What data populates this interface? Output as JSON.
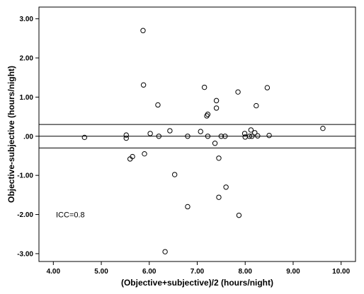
{
  "chart_data": {
    "type": "scatter",
    "title": "",
    "xlabel": "(Objective+subjective)/2 (hours/night)",
    "ylabel": "Objective-subjective (hours/night)",
    "xlim": [
      3.7,
      10.3
    ],
    "ylim": [
      -3.2,
      3.3
    ],
    "xticks": [
      4,
      5,
      6,
      7,
      8,
      9,
      10
    ],
    "xtick_labels": [
      "4.00",
      "5.00",
      "6.00",
      "7.00",
      "8.00",
      "9.00",
      "10.00"
    ],
    "yticks": [
      3,
      2,
      1,
      0,
      -1,
      -2,
      -3
    ],
    "ytick_labels": [
      "3.00",
      "2.00",
      "1.00",
      ".00",
      "-1.00",
      "-2.00",
      "-3.00"
    ],
    "reference_lines": [
      0.3,
      0,
      -0.3
    ],
    "grid": false,
    "annotation": "ICC=0.8",
    "points": [
      {
        "x": 4.65,
        "y": -0.03
      },
      {
        "x": 5.52,
        "y": 0.03
      },
      {
        "x": 5.52,
        "y": -0.05
      },
      {
        "x": 5.6,
        "y": -0.58
      },
      {
        "x": 5.65,
        "y": -0.52
      },
      {
        "x": 5.87,
        "y": 2.7
      },
      {
        "x": 5.88,
        "y": 1.31
      },
      {
        "x": 5.9,
        "y": -0.45
      },
      {
        "x": 6.02,
        "y": 0.07
      },
      {
        "x": 6.18,
        "y": 0.8
      },
      {
        "x": 6.2,
        "y": 0.0
      },
      {
        "x": 6.43,
        "y": 0.14
      },
      {
        "x": 6.53,
        "y": -0.98
      },
      {
        "x": 6.33,
        "y": -2.95
      },
      {
        "x": 6.8,
        "y": 0.0
      },
      {
        "x": 6.8,
        "y": -1.8
      },
      {
        "x": 7.07,
        "y": 0.12
      },
      {
        "x": 7.15,
        "y": 1.25
      },
      {
        "x": 7.2,
        "y": 0.52
      },
      {
        "x": 7.22,
        "y": 0.56
      },
      {
        "x": 7.22,
        "y": 0.0
      },
      {
        "x": 7.37,
        "y": -0.18
      },
      {
        "x": 7.4,
        "y": 0.91
      },
      {
        "x": 7.4,
        "y": 0.72
      },
      {
        "x": 7.45,
        "y": -0.56
      },
      {
        "x": 7.45,
        "y": -1.56
      },
      {
        "x": 7.5,
        "y": 0.0
      },
      {
        "x": 7.58,
        "y": 0.0
      },
      {
        "x": 7.6,
        "y": -1.3
      },
      {
        "x": 7.85,
        "y": 1.13
      },
      {
        "x": 7.87,
        "y": -2.02
      },
      {
        "x": 7.99,
        "y": 0.07
      },
      {
        "x": 8.0,
        "y": -0.02
      },
      {
        "x": 8.09,
        "y": 0.0
      },
      {
        "x": 8.12,
        "y": 0.16
      },
      {
        "x": 8.14,
        "y": 0.0
      },
      {
        "x": 8.2,
        "y": 0.09
      },
      {
        "x": 8.23,
        "y": 0.78
      },
      {
        "x": 8.26,
        "y": 0.01
      },
      {
        "x": 8.46,
        "y": 1.24
      },
      {
        "x": 8.5,
        "y": 0.02
      },
      {
        "x": 9.62,
        "y": 0.2
      }
    ]
  }
}
